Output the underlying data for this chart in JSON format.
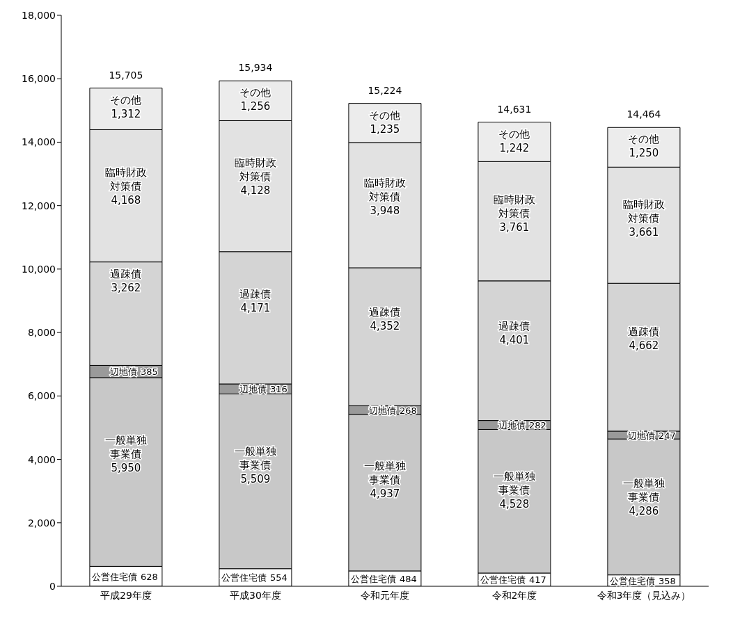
{
  "chart_data": {
    "type": "bar",
    "stacked": true,
    "categories": [
      "平成29年度",
      "平成30年度",
      "令和元年度",
      "令和2年度",
      "令和3年度（見込み）"
    ],
    "series": [
      {
        "name": "公営住宅債",
        "color": "#ffffff",
        "values": [
          628,
          554,
          484,
          417,
          358
        ],
        "value_labels": [
          "628",
          "554",
          "484",
          "417",
          "358"
        ]
      },
      {
        "name": "一般単独事業債",
        "color": "#c8c8c8",
        "values": [
          5950,
          5509,
          4937,
          4528,
          4286
        ],
        "value_labels": [
          "5,950",
          "5,509",
          "4,937",
          "4,528",
          "4,286"
        ]
      },
      {
        "name": "辺地債",
        "color": "#9a9a9a",
        "values": [
          385,
          316,
          268,
          282,
          247
        ],
        "value_labels": [
          "385",
          "316",
          "268",
          "282",
          "247"
        ]
      },
      {
        "name": "過疎債",
        "color": "#d4d4d4",
        "values": [
          3262,
          4171,
          4352,
          4401,
          4662
        ],
        "value_labels": [
          "3,262",
          "4,171",
          "4,352",
          "4,401",
          "4,662"
        ]
      },
      {
        "name": "臨時財政対策債",
        "color": "#e2e2e2",
        "values": [
          4168,
          4128,
          3948,
          3761,
          3661
        ],
        "value_labels": [
          "4,168",
          "4,128",
          "3,948",
          "3,761",
          "3,661"
        ]
      },
      {
        "name": "その他",
        "color": "#ececec",
        "values": [
          1312,
          1256,
          1235,
          1242,
          1250
        ],
        "value_labels": [
          "1,312",
          "1,256",
          "1,235",
          "1,242",
          "1,250"
        ]
      }
    ],
    "totals": [
      "15,705",
      "15,934",
      "15,224",
      "14,631",
      "14,464"
    ],
    "ylim": [
      0,
      18000
    ],
    "yticks": [
      {
        "value": 0,
        "label": "0"
      },
      {
        "value": 2000,
        "label": "2,000"
      },
      {
        "value": 4000,
        "label": "4,000"
      },
      {
        "value": 6000,
        "label": "6,000"
      },
      {
        "value": 8000,
        "label": "8,000"
      },
      {
        "value": 10000,
        "label": "10,000"
      },
      {
        "value": 12000,
        "label": "12,000"
      },
      {
        "value": 14000,
        "label": "14,000"
      },
      {
        "value": 16000,
        "label": "16,000"
      },
      {
        "value": 18000,
        "label": "18,000"
      }
    ],
    "grid": false,
    "legend": false
  }
}
